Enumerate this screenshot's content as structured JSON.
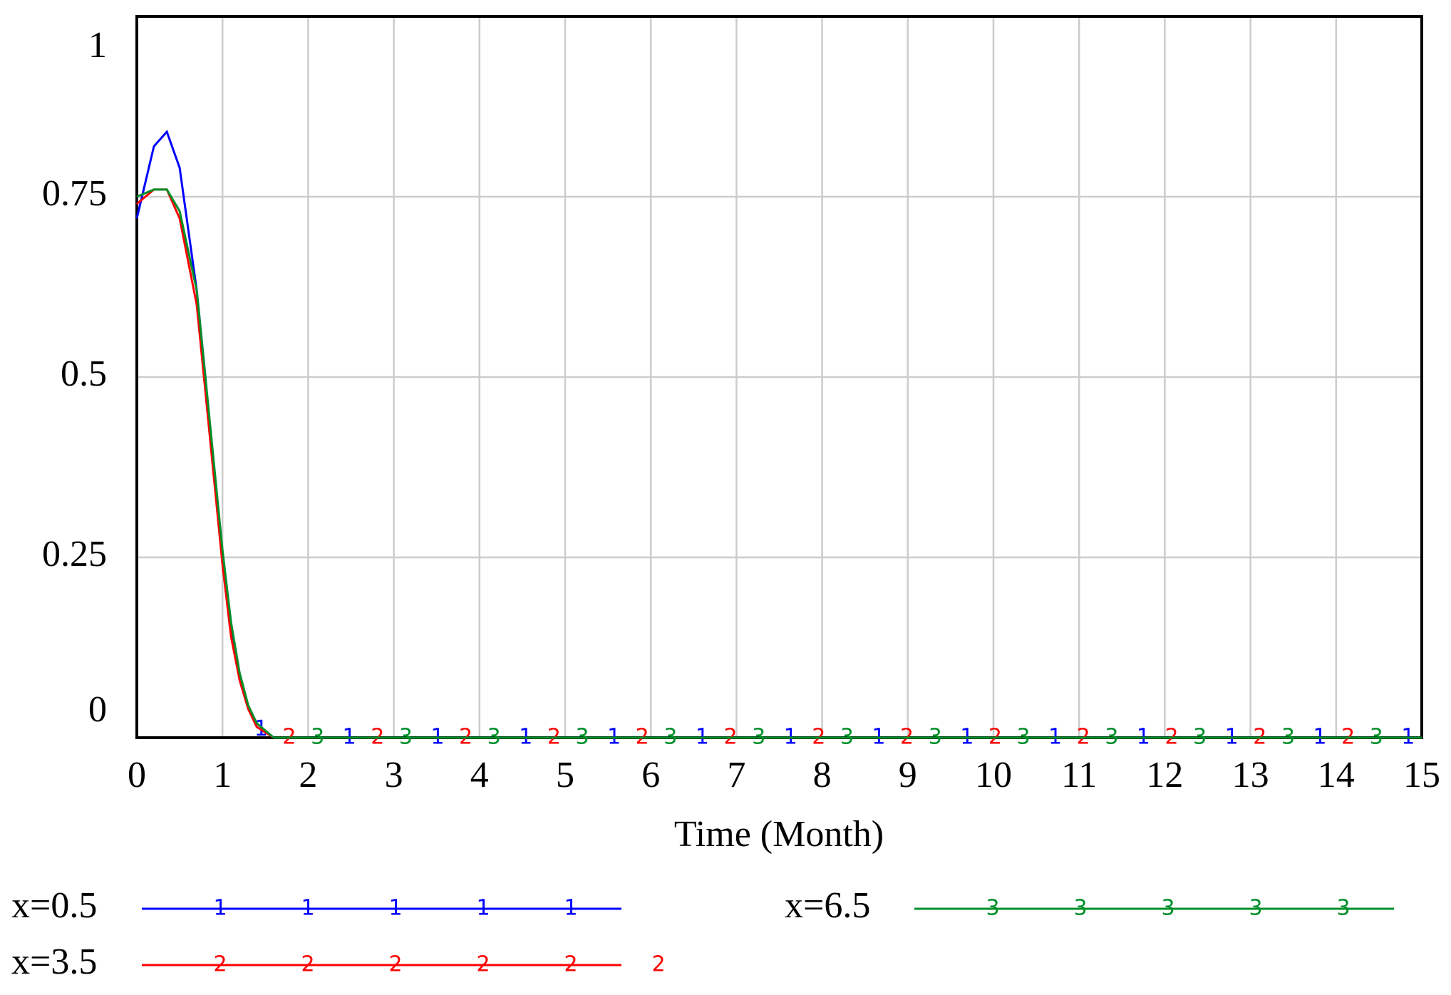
{
  "chart_data": {
    "type": "line",
    "x_label": "Time (Month)",
    "x": [
      0,
      0.2,
      0.35,
      0.5,
      0.7,
      0.8,
      0.9,
      1,
      1.1,
      1.2,
      1.3,
      1.4,
      1.6,
      2,
      3,
      4,
      5,
      6,
      7,
      8,
      9,
      10,
      11,
      12,
      13,
      14,
      15
    ],
    "series": [
      {
        "name": "x=0.5",
        "marker": "1",
        "color": "#0000ff",
        "values": [
          0.72,
          0.82,
          0.84,
          0.79,
          0.62,
          0.5,
          0.37,
          0.25,
          0.15,
          0.08,
          0.04,
          0.015,
          0,
          0,
          0,
          0,
          0,
          0,
          0,
          0,
          0,
          0,
          0,
          0,
          0,
          0,
          0
        ]
      },
      {
        "name": "x=3.5",
        "marker": "2",
        "color": "#ff0000",
        "values": [
          0.74,
          0.76,
          0.76,
          0.72,
          0.6,
          0.48,
          0.36,
          0.24,
          0.14,
          0.08,
          0.04,
          0.015,
          0,
          0,
          0,
          0,
          0,
          0,
          0,
          0,
          0,
          0,
          0,
          0,
          0,
          0,
          0
        ]
      },
      {
        "name": "x=6.5",
        "marker": "3",
        "color": "#008f2a",
        "values": [
          0.75,
          0.76,
          0.76,
          0.73,
          0.62,
          0.5,
          0.38,
          0.26,
          0.16,
          0.09,
          0.045,
          0.02,
          0,
          0,
          0,
          0,
          0,
          0,
          0,
          0,
          0,
          0,
          0,
          0,
          0,
          0,
          0
        ]
      }
    ],
    "xlim": [
      0,
      15
    ],
    "xticks": [
      0,
      1,
      2,
      3,
      4,
      5,
      6,
      7,
      8,
      9,
      10,
      11,
      12,
      13,
      14,
      15
    ],
    "ylim": [
      0,
      1
    ],
    "yticks": [
      0,
      0.25,
      0.5,
      0.75,
      1
    ],
    "grid": true
  }
}
